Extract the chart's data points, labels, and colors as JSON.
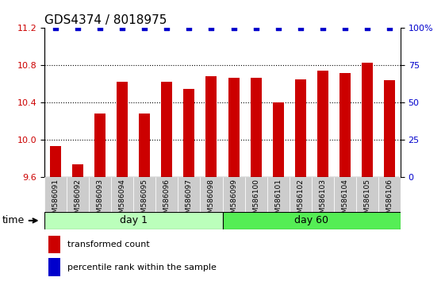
{
  "title": "GDS4374 / 8018975",
  "samples": [
    "GSM586091",
    "GSM586092",
    "GSM586093",
    "GSM586094",
    "GSM586095",
    "GSM586096",
    "GSM586097",
    "GSM586098",
    "GSM586099",
    "GSM586100",
    "GSM586101",
    "GSM586102",
    "GSM586103",
    "GSM586104",
    "GSM586105",
    "GSM586106"
  ],
  "bar_values": [
    9.93,
    9.74,
    10.28,
    10.62,
    10.28,
    10.62,
    10.55,
    10.68,
    10.67,
    10.67,
    10.4,
    10.65,
    10.74,
    10.72,
    10.83,
    10.64
  ],
  "percentile_values": [
    100,
    100,
    100,
    100,
    100,
    100,
    100,
    100,
    100,
    100,
    100,
    100,
    100,
    100,
    100,
    100
  ],
  "bar_color": "#cc0000",
  "percentile_color": "#0000cc",
  "ylim_left": [
    9.6,
    11.2
  ],
  "ylim_right": [
    0,
    100
  ],
  "yticks_left": [
    9.6,
    10.0,
    10.4,
    10.8,
    11.2
  ],
  "yticks_right": [
    0,
    25,
    50,
    75,
    100
  ],
  "day1_samples": 8,
  "day60_samples": 8,
  "day1_label": "day 1",
  "day60_label": "day 60",
  "day1_color": "#bbffbb",
  "day60_color": "#55ee55",
  "time_label": "time",
  "legend_bar_label": "transformed count",
  "legend_pct_label": "percentile rank within the sample",
  "bar_width": 0.5,
  "title_fontsize": 11,
  "axis_label_color_left": "#cc0000",
  "axis_label_color_right": "#0000cc"
}
